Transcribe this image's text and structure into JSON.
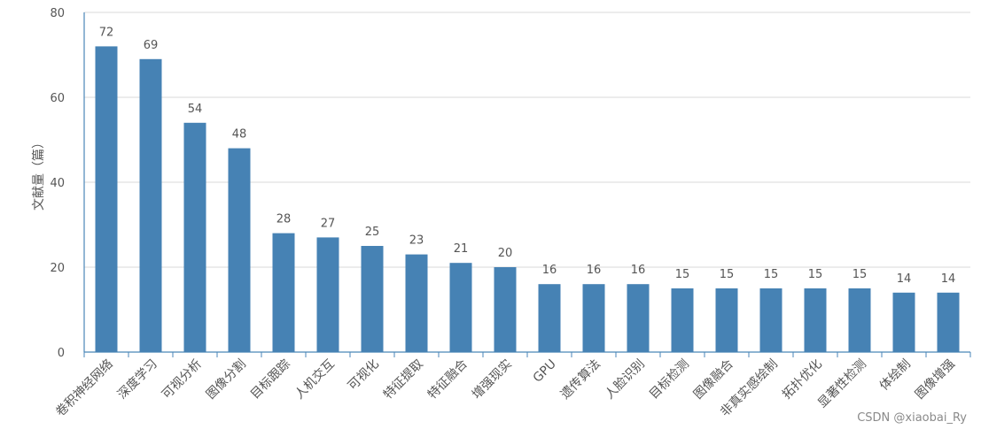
{
  "chart_data": {
    "type": "bar",
    "ylabel": "文献量（篇）",
    "ylim": [
      0,
      80
    ],
    "yticks": [
      0,
      20,
      40,
      60,
      80
    ],
    "grid": true,
    "color": "#4682b4",
    "categories": [
      "卷积神经网络",
      "深度学习",
      "可视分析",
      "图像分割",
      "目标跟踪",
      "人机交互",
      "可视化",
      "特征提取",
      "特征融合",
      "增强现实",
      "GPU",
      "遗传算法",
      "人脸识别",
      "目标检测",
      "图像融合",
      "非真实感绘制",
      "拓扑优化",
      "显著性检测",
      "体绘制",
      "图像增强"
    ],
    "values": [
      72,
      69,
      54,
      48,
      28,
      27,
      25,
      23,
      21,
      20,
      16,
      16,
      16,
      15,
      15,
      15,
      15,
      15,
      14,
      14
    ]
  },
  "watermark": "CSDN @xiaobai_Ry"
}
